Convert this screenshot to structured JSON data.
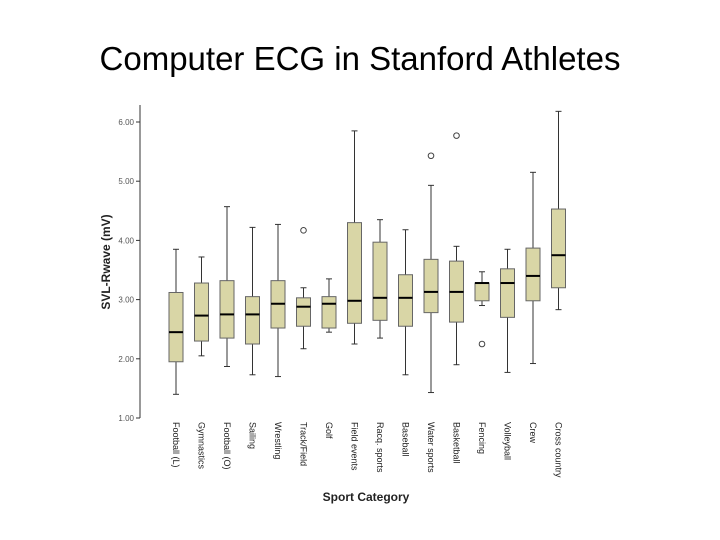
{
  "slide": {
    "title": "Computer ECG in Stanford Athletes"
  },
  "chart_data": {
    "type": "boxplot",
    "xlabel": "Sport Category",
    "ylabel": "SVL-Rwave (mV)",
    "ylim": [
      1.0,
      6.0
    ],
    "yticks": [
      1.0,
      2.0,
      3.0,
      4.0,
      5.0,
      6.0
    ],
    "ytick_labels": [
      "1.00",
      "2.00",
      "3.00",
      "4.00",
      "5.00",
      "6.00"
    ],
    "grid": false,
    "colors": {
      "box_fill": "#d9d6a6",
      "box_stroke": "#666666",
      "median": "#000000",
      "whisker": "#333333",
      "axis": "#333333"
    },
    "categories": [
      "Football (L)",
      "Gymnastics",
      "Football (O)",
      "Sailing",
      "Wrestling",
      "Track/Field",
      "Golf",
      "Field events",
      "Racq. sports",
      "Baseball",
      "Water sports",
      "Basketball",
      "Fencing",
      "Volleyball",
      "Crew",
      "Cross country"
    ],
    "boxes": [
      {
        "min": 1.4,
        "q1": 1.95,
        "median": 2.45,
        "q3": 3.12,
        "max": 3.85,
        "outliers": []
      },
      {
        "min": 2.05,
        "q1": 2.3,
        "median": 2.73,
        "q3": 3.28,
        "max": 3.72,
        "outliers": []
      },
      {
        "min": 1.87,
        "q1": 2.35,
        "median": 2.75,
        "q3": 3.32,
        "max": 4.57,
        "outliers": []
      },
      {
        "min": 1.73,
        "q1": 2.25,
        "median": 2.75,
        "q3": 3.05,
        "max": 4.22,
        "outliers": []
      },
      {
        "min": 1.7,
        "q1": 2.52,
        "median": 2.93,
        "q3": 3.32,
        "max": 4.27,
        "outliers": []
      },
      {
        "min": 2.17,
        "q1": 2.55,
        "median": 2.88,
        "q3": 3.03,
        "max": 3.2,
        "outliers": [
          4.17
        ]
      },
      {
        "min": 2.45,
        "q1": 2.52,
        "median": 2.93,
        "q3": 3.05,
        "max": 3.35,
        "outliers": []
      },
      {
        "min": 2.25,
        "q1": 2.6,
        "median": 2.98,
        "q3": 4.3,
        "max": 5.85,
        "outliers": []
      },
      {
        "min": 2.35,
        "q1": 2.65,
        "median": 3.03,
        "q3": 3.97,
        "max": 4.35,
        "outliers": []
      },
      {
        "min": 1.73,
        "q1": 2.55,
        "median": 3.03,
        "q3": 3.42,
        "max": 4.18,
        "outliers": []
      },
      {
        "min": 1.43,
        "q1": 2.78,
        "median": 3.13,
        "q3": 3.68,
        "max": 4.93,
        "outliers": [
          5.43
        ]
      },
      {
        "min": 1.9,
        "q1": 2.62,
        "median": 3.13,
        "q3": 3.65,
        "max": 3.9,
        "outliers": [
          5.77
        ]
      },
      {
        "min": 2.9,
        "q1": 2.98,
        "median": 3.28,
        "q3": 3.28,
        "max": 3.47,
        "outliers": [
          2.25
        ]
      },
      {
        "min": 1.77,
        "q1": 2.7,
        "median": 3.28,
        "q3": 3.52,
        "max": 3.85,
        "outliers": []
      },
      {
        "min": 1.92,
        "q1": 2.98,
        "median": 3.4,
        "q3": 3.87,
        "max": 5.15,
        "outliers": []
      },
      {
        "min": 2.83,
        "q1": 3.2,
        "median": 3.75,
        "q3": 4.53,
        "max": 6.18,
        "outliers": []
      }
    ]
  }
}
